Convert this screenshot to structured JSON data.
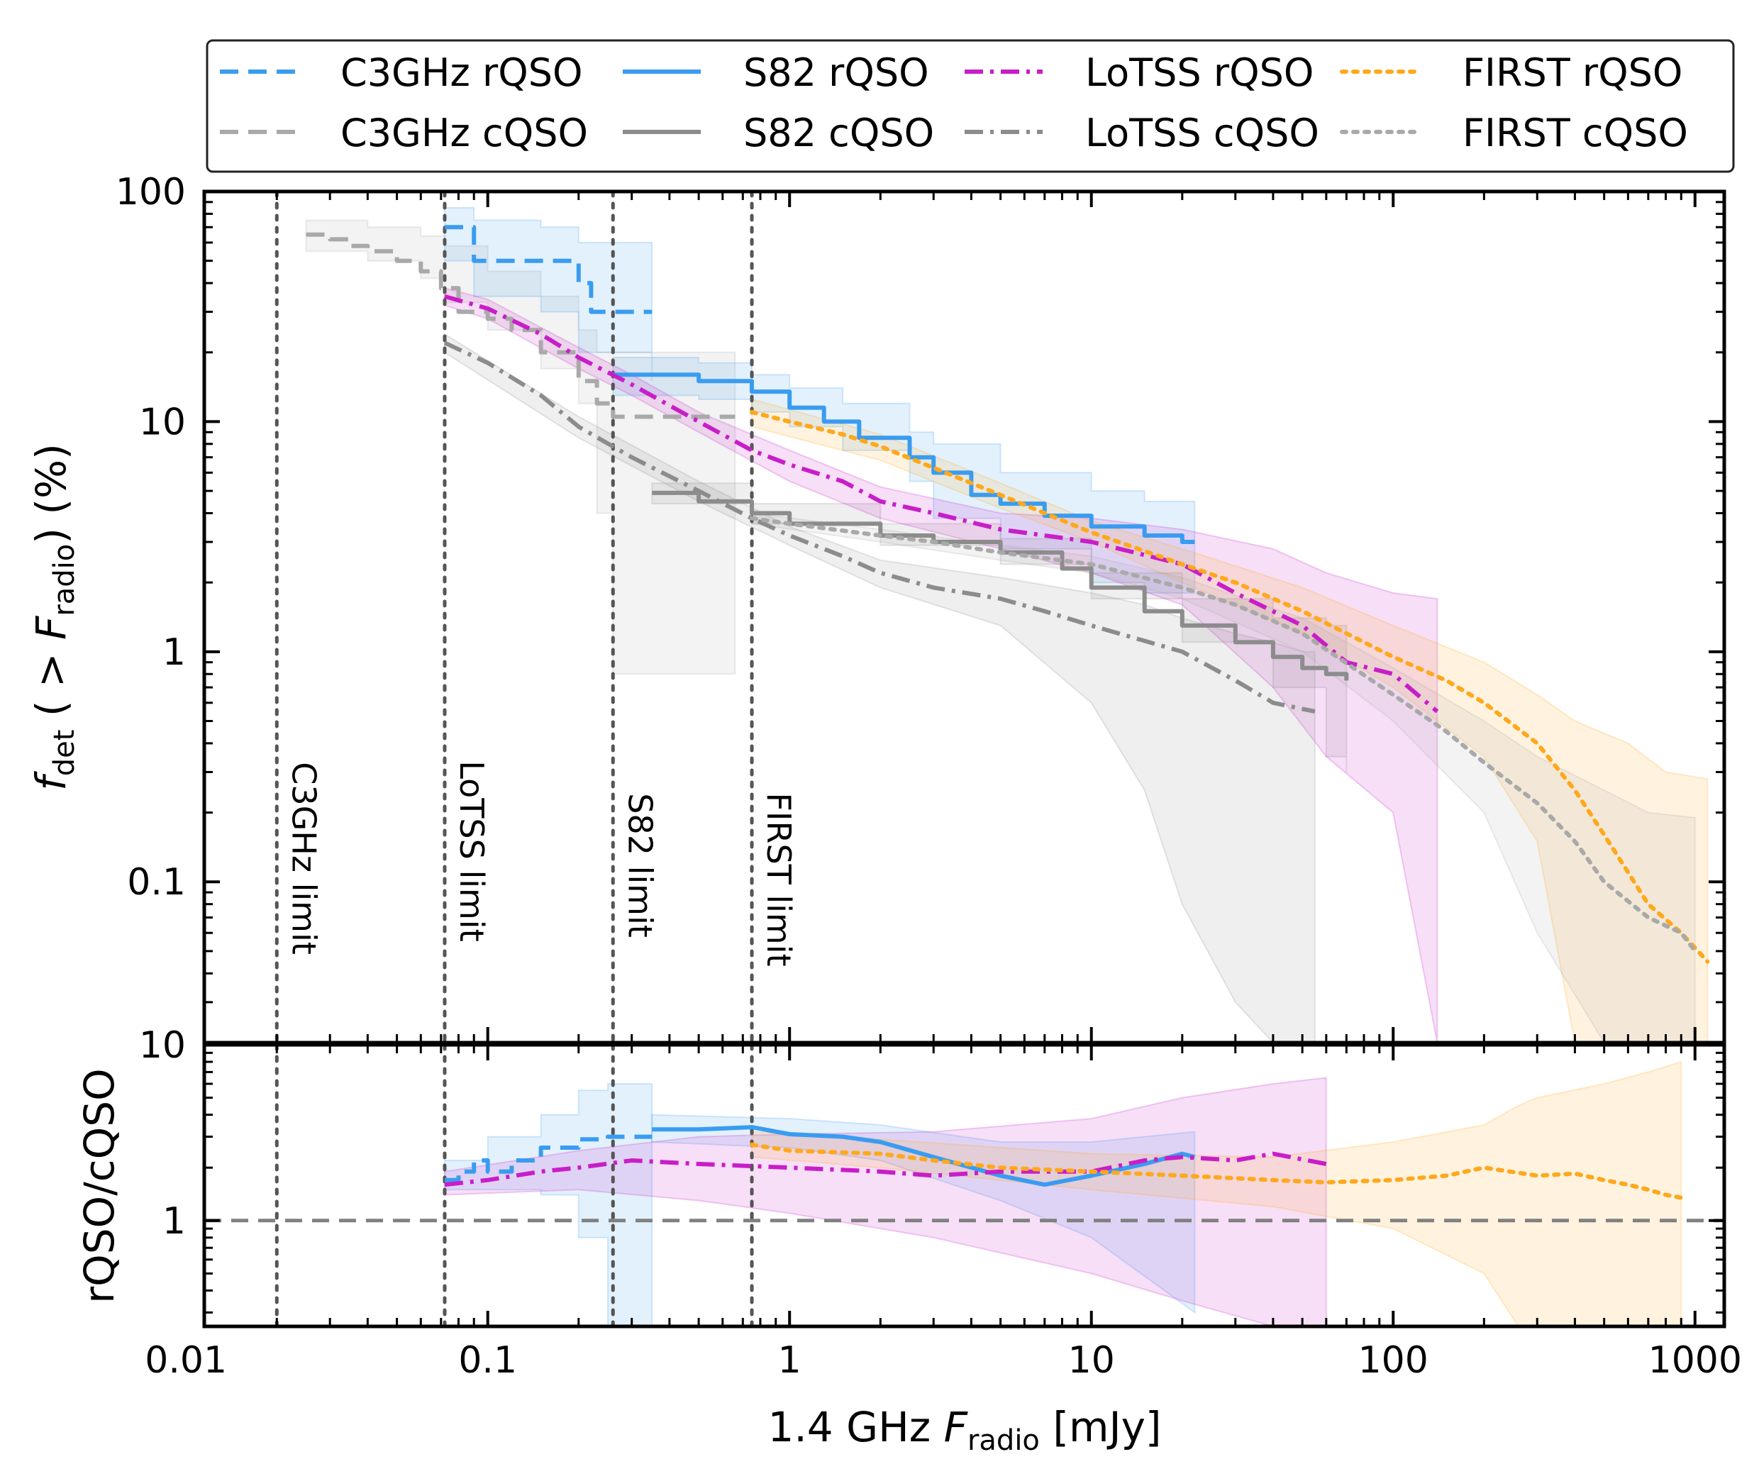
{
  "chart_data": {
    "type": "line",
    "title": "",
    "xlabel_main": "1.4 GHz ",
    "xlabel_italic": "F",
    "xlabel_sub": "radio",
    "xlabel_unit": " [mJy]",
    "ylabel_top_italic": "f",
    "ylabel_top_sub": "det",
    "ylabel_top_mid": " ( > ",
    "ylabel_top_italic2": "F",
    "ylabel_top_sub2": "radio",
    "ylabel_top_end": ") (%)",
    "ylabel_bottom": "rQSO/cQSO",
    "xscale": "log",
    "xlim": [
      0.0115,
      1250
    ],
    "top_panel": {
      "yscale": "log",
      "ylim": [
        0.02,
        100
      ],
      "grid": false
    },
    "bottom_panel": {
      "yscale": "log",
      "ylim": [
        0.25,
        10
      ],
      "reference_line": 1,
      "grid": false
    },
    "x_ticks": [
      {
        "value": 0.01,
        "label": "0.01"
      },
      {
        "value": 0.1,
        "label": "0.1"
      },
      {
        "value": 1,
        "label": "1"
      },
      {
        "value": 10,
        "label": "10"
      },
      {
        "value": 100,
        "label": "100"
      },
      {
        "value": 1000,
        "label": "1000"
      }
    ],
    "top_y_ticks": [
      {
        "value": 100,
        "label": "100"
      },
      {
        "value": 10,
        "label": "10"
      },
      {
        "value": 1,
        "label": "1"
      },
      {
        "value": 0.1,
        "label": "0.1"
      }
    ],
    "bottom_y_ticks": [
      {
        "value": 10,
        "label": "10"
      },
      {
        "value": 1,
        "label": "1"
      }
    ],
    "limits": [
      {
        "name": "C3GHz limit",
        "x": 0.02
      },
      {
        "name": "LoTSS limit",
        "x": 0.072
      },
      {
        "name": "S82 limit",
        "x": 0.26
      },
      {
        "name": "FIRST limit",
        "x": 0.75
      }
    ],
    "legend": [
      {
        "label": "C3GHz rQSO",
        "series": "c3_r"
      },
      {
        "label": "S82 rQSO",
        "series": "s82_r"
      },
      {
        "label": "LoTSS rQSO",
        "series": "lot_r"
      },
      {
        "label": "FIRST rQSO",
        "series": "fir_r"
      },
      {
        "label": "C3GHz cQSO",
        "series": "c3_c"
      },
      {
        "label": "S82 cQSO",
        "series": "s82_c"
      },
      {
        "label": "LoTSS cQSO",
        "series": "lot_c"
      },
      {
        "label": "FIRST cQSO",
        "series": "fir_c"
      }
    ],
    "colors": {
      "blue": "#3a9cf0",
      "magenta": "#c81ec8",
      "orange": "#ffa81c",
      "gray": "#a9a9a9",
      "darkgray": "#8c8c8c",
      "ref": "#808080",
      "limit": "#555555"
    },
    "top_series": [
      {
        "id": "c3_c",
        "name": "C3GHz cQSO",
        "color": "gray",
        "dash": "dashed",
        "step": true,
        "x": [
          0.025,
          0.03,
          0.035,
          0.04,
          0.05,
          0.06,
          0.07,
          0.08,
          0.1,
          0.12,
          0.15,
          0.2,
          0.23,
          0.26,
          0.3,
          0.5,
          0.66
        ],
        "y": [
          65,
          62,
          58,
          55,
          50,
          45,
          38,
          30,
          28,
          25,
          20,
          15,
          12,
          10.5,
          10.5,
          10.5,
          10.5
        ],
        "band": {
          "x": [
            0.025,
            0.04,
            0.06,
            0.072,
            0.1,
            0.15,
            0.2,
            0.23,
            0.26,
            0.3,
            0.66
          ],
          "lo": [
            55,
            50,
            42,
            33,
            25,
            17,
            12,
            4,
            0.8,
            0.8,
            0.8
          ],
          "hi": [
            75,
            70,
            64,
            58,
            45,
            35,
            25,
            20,
            20,
            20,
            20
          ]
        }
      },
      {
        "id": "c3_r",
        "name": "C3GHz rQSO",
        "color": "blue",
        "dash": "dashed",
        "step": true,
        "x": [
          0.072,
          0.09,
          0.15,
          0.2,
          0.22,
          0.3,
          0.35
        ],
        "y": [
          70,
          50,
          50,
          40,
          30,
          30,
          30
        ],
        "band": {
          "x": [
            0.072,
            0.09,
            0.15,
            0.2,
            0.35
          ],
          "lo": [
            50,
            35,
            30,
            20,
            15
          ],
          "hi": [
            85,
            75,
            70,
            60,
            50
          ]
        }
      },
      {
        "id": "s82_r",
        "name": "S82 rQSO",
        "color": "blue",
        "dash": "solid",
        "step": true,
        "x": [
          0.26,
          0.5,
          0.75,
          1,
          1.3,
          1.7,
          2.5,
          3,
          4,
          5,
          7,
          10,
          15,
          20,
          22
        ],
        "y": [
          16,
          15,
          13.5,
          11.5,
          10,
          8.5,
          7,
          6,
          4.8,
          4.4,
          3.9,
          3.5,
          3.2,
          3.0,
          3.0
        ],
        "band": {
          "x": [
            0.26,
            0.5,
            0.75,
            1,
            1.5,
            2.5,
            3,
            5,
            10,
            15,
            22
          ],
          "lo": [
            13,
            12.5,
            11,
            9.5,
            7.5,
            5.5,
            3.8,
            2.8,
            2.0,
            1.8,
            1.8
          ],
          "hi": [
            19,
            18,
            16,
            14,
            12,
            9,
            8,
            6,
            5,
            4.5,
            4.5
          ]
        }
      },
      {
        "id": "s82_c",
        "name": "S82 cQSO",
        "color": "darkgray",
        "dash": "solid",
        "step": true,
        "x": [
          0.35,
          0.5,
          0.75,
          1,
          2,
          3,
          5,
          8,
          10,
          15,
          20,
          30,
          40,
          50,
          60,
          70
        ],
        "y": [
          4.9,
          4.5,
          4.0,
          3.6,
          3.2,
          3.0,
          2.7,
          2.3,
          1.9,
          1.5,
          1.3,
          1.1,
          0.95,
          0.85,
          0.8,
          0.75
        ],
        "band": {
          "x": [
            0.35,
            0.75,
            2,
            5,
            10,
            20,
            40,
            60,
            70
          ],
          "lo": [
            4.4,
            3.6,
            2.9,
            2.4,
            1.7,
            1.1,
            0.7,
            0.35,
            0.3
          ],
          "hi": [
            5.4,
            4.4,
            3.6,
            3.1,
            2.2,
            1.7,
            1.4,
            1.3,
            1.3
          ]
        }
      },
      {
        "id": "lot_r",
        "name": "LoTSS rQSO",
        "color": "magenta",
        "dash": "dashdot",
        "step": false,
        "x": [
          0.072,
          0.1,
          0.15,
          0.2,
          0.3,
          0.5,
          0.75,
          1,
          1.5,
          2,
          3,
          5,
          10,
          20,
          30,
          50,
          70,
          100,
          140
        ],
        "y": [
          35,
          31,
          24,
          19,
          14.5,
          10,
          7.5,
          6.5,
          5.5,
          4.5,
          4.0,
          3.4,
          3.0,
          2.4,
          1.8,
          1.3,
          0.9,
          0.8,
          0.55
        ],
        "band": {
          "x": [
            0.072,
            0.1,
            0.2,
            0.3,
            0.5,
            1,
            2,
            5,
            10,
            20,
            40,
            60,
            100,
            140
          ],
          "lo": [
            32,
            28,
            17,
            13,
            9,
            5.5,
            3.8,
            2.8,
            2.2,
            1.6,
            0.7,
            0.35,
            0.2,
            0.02
          ],
          "hi": [
            38,
            34,
            21,
            16,
            11,
            7.5,
            5.2,
            4.0,
            3.8,
            3.4,
            2.8,
            2.2,
            1.8,
            1.7
          ]
        }
      },
      {
        "id": "lot_c",
        "name": "LoTSS cQSO",
        "color": "darkgray",
        "dash": "dashdot",
        "step": false,
        "x": [
          0.072,
          0.1,
          0.15,
          0.2,
          0.3,
          0.5,
          0.75,
          1,
          1.5,
          2,
          3,
          5,
          7,
          10,
          20,
          30,
          40,
          55
        ],
        "y": [
          22,
          18,
          13,
          9.5,
          7,
          5,
          3.8,
          3.2,
          2.6,
          2.2,
          1.9,
          1.7,
          1.5,
          1.3,
          1.0,
          0.75,
          0.6,
          0.55
        ],
        "band": {
          "x": [
            0.072,
            0.2,
            0.5,
            1,
            2,
            5,
            10,
            15,
            20,
            30,
            40,
            50,
            55
          ],
          "lo": [
            20,
            8.5,
            4.5,
            2.9,
            1.9,
            1.3,
            0.6,
            0.25,
            0.08,
            0.03,
            0.02,
            0.02,
            0.02
          ],
          "hi": [
            24,
            10.5,
            5.5,
            3.5,
            2.5,
            2.1,
            1.8,
            1.6,
            1.4,
            1.2,
            1.1,
            1.0,
            1.0
          ]
        }
      },
      {
        "id": "fir_r",
        "name": "FIRST rQSO",
        "color": "orange",
        "dash": "dotted",
        "step": false,
        "x": [
          0.75,
          1,
          1.5,
          2,
          3,
          5,
          10,
          20,
          30,
          50,
          100,
          150,
          200,
          300,
          400,
          500,
          600,
          700,
          900,
          1100
        ],
        "y": [
          11,
          10,
          8.8,
          7.8,
          6.3,
          4.8,
          3.3,
          2.4,
          2.0,
          1.5,
          0.95,
          0.75,
          0.6,
          0.4,
          0.25,
          0.16,
          0.11,
          0.08,
          0.06,
          0.045
        ],
        "band": {
          "x": [
            0.75,
            2,
            5,
            10,
            20,
            50,
            100,
            200,
            300,
            400,
            600,
            800,
            1100
          ],
          "lo": [
            9.5,
            6.8,
            4.2,
            3.0,
            2.0,
            1.2,
            0.7,
            0.35,
            0.15,
            0.02,
            0.02,
            0.02,
            0.02
          ],
          "hi": [
            12.5,
            8.8,
            5.4,
            3.7,
            2.8,
            1.9,
            1.3,
            0.9,
            0.65,
            0.5,
            0.4,
            0.3,
            0.28
          ]
        }
      },
      {
        "id": "fir_c",
        "name": "FIRST cQSO",
        "color": "gray",
        "dash": "dotted",
        "step": false,
        "x": [
          0.75,
          1,
          2,
          3,
          5,
          10,
          20,
          30,
          50,
          100,
          150,
          200,
          300,
          400,
          500,
          700,
          900,
          1000
        ],
        "y": [
          3.8,
          3.6,
          3.2,
          3.0,
          2.7,
          2.4,
          1.9,
          1.6,
          1.2,
          0.65,
          0.45,
          0.33,
          0.22,
          0.15,
          0.1,
          0.07,
          0.06,
          0.05
        ],
        "band": {
          "x": [
            0.75,
            2,
            5,
            10,
            20,
            50,
            100,
            200,
            300,
            500,
            700,
            1000
          ],
          "lo": [
            3.6,
            3.0,
            2.5,
            2.2,
            1.7,
            1.0,
            0.5,
            0.2,
            0.06,
            0.02,
            0.02,
            0.02
          ],
          "hi": [
            4.0,
            3.4,
            2.9,
            2.6,
            2.1,
            1.4,
            0.85,
            0.5,
            0.35,
            0.25,
            0.2,
            0.19
          ]
        }
      }
    ],
    "bottom_series": [
      {
        "id": "ratio_c3",
        "name": "C3GHz ratio",
        "color": "blue",
        "dash": "dashed",
        "step": true,
        "x": [
          0.072,
          0.08,
          0.09,
          0.1,
          0.12,
          0.15,
          0.2,
          0.25,
          0.3,
          0.35
        ],
        "y": [
          1.7,
          1.9,
          2.2,
          1.9,
          2.2,
          2.6,
          2.9,
          3.0,
          3.0,
          3.0
        ],
        "band": {
          "x": [
            0.072,
            0.1,
            0.15,
            0.2,
            0.25,
            0.35
          ],
          "lo": [
            1.5,
            1.5,
            1.4,
            0.8,
            0.25,
            0.25
          ],
          "hi": [
            2.2,
            3.0,
            4.0,
            5.5,
            6.0,
            6.0
          ]
        }
      },
      {
        "id": "ratio_s82",
        "name": "S82 ratio",
        "color": "blue",
        "dash": "solid",
        "step": false,
        "x": [
          0.35,
          0.5,
          0.75,
          1,
          1.5,
          2,
          3,
          5,
          7,
          10,
          15,
          20,
          22
        ],
        "y": [
          3.3,
          3.3,
          3.4,
          3.1,
          3.0,
          2.8,
          2.3,
          1.8,
          1.6,
          1.8,
          2.1,
          2.4,
          2.3
        ],
        "band": {
          "x": [
            0.35,
            1,
            2,
            5,
            10,
            22
          ],
          "lo": [
            2.8,
            2.6,
            2.2,
            1.3,
            0.8,
            0.3
          ],
          "hi": [
            4.0,
            3.8,
            3.5,
            2.8,
            2.8,
            3.2
          ]
        }
      },
      {
        "id": "ratio_lot",
        "name": "LoTSS ratio",
        "color": "magenta",
        "dash": "dashdot",
        "step": false,
        "x": [
          0.072,
          0.1,
          0.15,
          0.2,
          0.3,
          0.5,
          1,
          2,
          3,
          5,
          10,
          15,
          20,
          30,
          40,
          60
        ],
        "y": [
          1.6,
          1.7,
          1.9,
          2.0,
          2.2,
          2.1,
          2.0,
          1.9,
          1.8,
          1.9,
          1.9,
          2.2,
          2.3,
          2.2,
          2.4,
          2.1
        ],
        "band": {
          "x": [
            0.072,
            0.2,
            0.5,
            1,
            3,
            10,
            20,
            40,
            60
          ],
          "lo": [
            1.4,
            1.5,
            1.3,
            1.1,
            0.8,
            0.5,
            0.35,
            0.25,
            0.25
          ],
          "hi": [
            1.9,
            2.5,
            3.0,
            3.1,
            3.2,
            3.8,
            5.0,
            6.0,
            6.5
          ]
        }
      },
      {
        "id": "ratio_fir",
        "name": "FIRST ratio",
        "color": "orange",
        "dash": "dotted",
        "step": false,
        "x": [
          0.75,
          1,
          2,
          3,
          5,
          10,
          20,
          40,
          60,
          100,
          150,
          200,
          300,
          400,
          500,
          600,
          700,
          800,
          900
        ],
        "y": [
          2.7,
          2.5,
          2.4,
          2.2,
          2.0,
          1.9,
          1.8,
          1.7,
          1.65,
          1.7,
          1.8,
          2.0,
          1.8,
          1.85,
          1.7,
          1.6,
          1.5,
          1.4,
          1.35
        ],
        "band": {
          "x": [
            0.75,
            2,
            10,
            40,
            100,
            200,
            260,
            300,
            500,
            700,
            900
          ],
          "lo": [
            2.3,
            2.0,
            1.5,
            1.2,
            0.9,
            0.5,
            0.25,
            0.25,
            0.25,
            0.25,
            0.25
          ],
          "hi": [
            3.2,
            2.9,
            2.4,
            2.3,
            2.8,
            3.5,
            4.5,
            5.0,
            6.0,
            7.0,
            8.0
          ]
        }
      }
    ]
  }
}
